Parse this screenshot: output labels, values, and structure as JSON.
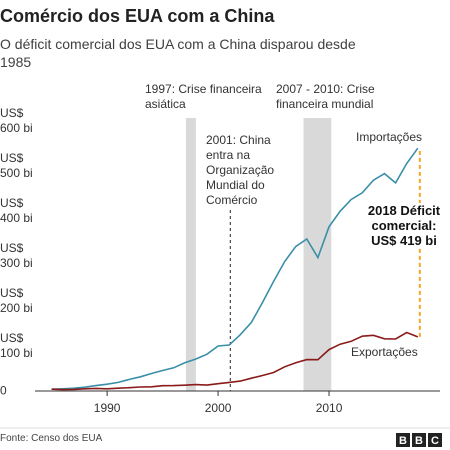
{
  "chart_data": {
    "type": "line",
    "title": "Comércio dos EUA com a China",
    "subtitle": "O déficit comercial dos EUA com a China disparou desde 1985",
    "x": [
      1985,
      1986,
      1987,
      1988,
      1989,
      1990,
      1991,
      1992,
      1993,
      1994,
      1995,
      1996,
      1997,
      1998,
      1999,
      2000,
      2001,
      2002,
      2003,
      2004,
      2005,
      2006,
      2007,
      2008,
      2009,
      2010,
      2011,
      2012,
      2013,
      2014,
      2015,
      2016,
      2017,
      2018
    ],
    "series": [
      {
        "name": "Importações",
        "color": "#3a8fa8",
        "values": [
          3.9,
          4.8,
          6.3,
          8.5,
          12,
          15.2,
          19,
          25.7,
          31.5,
          38.8,
          45.5,
          51.5,
          62.6,
          71.2,
          81.8,
          100,
          102.3,
          125.2,
          152.4,
          196.7,
          243.5,
          287.8,
          321.4,
          337.8,
          296.4,
          364.9,
          399.4,
          425.6,
          440.4,
          468.5,
          483.2,
          462.4,
          505.5,
          539.5
        ]
      },
      {
        "name": "Exportações",
        "color": "#8b1a1a",
        "values": [
          3.9,
          3.1,
          3.5,
          5.0,
          5.8,
          4.8,
          6.3,
          7.4,
          8.8,
          9.3,
          11.8,
          12.0,
          12.9,
          14.2,
          13.1,
          16.2,
          19.2,
          22.1,
          28.4,
          34.4,
          41.2,
          53.7,
          62.9,
          69.7,
          69.5,
          91.9,
          104.1,
          110.5,
          121.7,
          123.7,
          115.9,
          115.6,
          129.9,
          120.3
        ]
      }
    ],
    "xlim": [
      1983.5,
      2020
    ],
    "xticks": [
      1990,
      2000,
      2010
    ],
    "ylim": [
      0,
      620
    ],
    "yticks": [
      0,
      {
        "value": 100,
        "label": "US$ 100 bi"
      },
      {
        "value": 200,
        "label": "US$ 200 bi"
      },
      {
        "value": 300,
        "label": "US$ 300 bi"
      },
      {
        "value": 400,
        "label": "US$ 400 bi"
      },
      {
        "value": 500,
        "label": "US$ 500 bi"
      },
      {
        "value": 600,
        "label": "US$ 600 bi"
      }
    ],
    "grid": false,
    "shaded_periods": [
      {
        "label": "1997: Crise financeira asiática",
        "range": [
          1997.1,
          1998.0
        ],
        "color": "#d9d9d9"
      },
      {
        "label": "2007 - 2010: Crise financeira mundial",
        "range": [
          2007.7,
          2010.2
        ],
        "color": "#d9d9d9"
      }
    ],
    "event": {
      "label": "2001: China entra na Organização Mundial do Comércio",
      "x": 2001.1
    },
    "deficit": {
      "label": "2018 Déficit comercial: US$ 419 bi",
      "color": "#f5a623"
    },
    "source": "Fonte: Censo dos EUA",
    "logo": "BBC"
  }
}
